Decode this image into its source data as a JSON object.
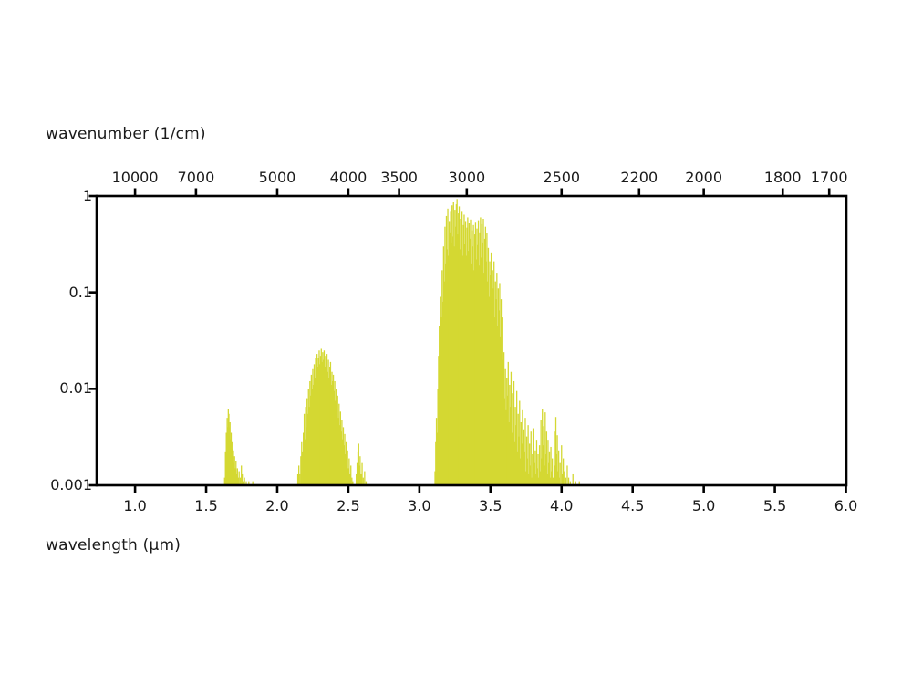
{
  "chart_data": {
    "type": "bar",
    "subtype": "stick-spectrum",
    "description": "Infrared absorption line spectrum with three dense bands near 1.7, 2.3 and 3.3 micrometers",
    "top_axis": {
      "label": "wavenumber (1/cm)",
      "tick_labels": [
        "10000",
        "7000",
        "5000",
        "4000",
        "3500",
        "3000",
        "2500",
        "2200",
        "2000",
        "1800",
        "1700"
      ]
    },
    "bottom_axis": {
      "label": "wavelength (μm)",
      "tick_labels": [
        "1.0",
        "1.5",
        "2.0",
        "2.5",
        "3.0",
        "3.5",
        "4.0",
        "4.5",
        "5.0",
        "5.5",
        "6.0"
      ],
      "range": [
        0.73,
        6.0
      ]
    },
    "y_axis": {
      "scale": "log",
      "tick_labels": [
        "1",
        "0.1",
        "0.01",
        "0.001"
      ],
      "range": [
        0.001,
        1
      ]
    },
    "grid": false,
    "legend": false,
    "series": [
      {
        "name": "absorption-spectrum",
        "color": "#d4d832",
        "points": [
          [
            1.63,
            0.0012
          ],
          [
            1.636,
            0.0022
          ],
          [
            1.642,
            0.0035
          ],
          [
            1.648,
            0.005
          ],
          [
            1.652,
            0.004
          ],
          [
            1.656,
            0.0062
          ],
          [
            1.66,
            0.0055
          ],
          [
            1.664,
            0.004
          ],
          [
            1.668,
            0.0045
          ],
          [
            1.672,
            0.003
          ],
          [
            1.676,
            0.0035
          ],
          [
            1.68,
            0.0024
          ],
          [
            1.684,
            0.0028
          ],
          [
            1.688,
            0.002
          ],
          [
            1.692,
            0.0023
          ],
          [
            1.696,
            0.0017
          ],
          [
            1.7,
            0.002
          ],
          [
            1.705,
            0.0015
          ],
          [
            1.71,
            0.0018
          ],
          [
            1.715,
            0.0013
          ],
          [
            1.72,
            0.0015
          ],
          [
            1.726,
            0.0012
          ],
          [
            1.732,
            0.0014
          ],
          [
            1.74,
            0.0012
          ],
          [
            1.748,
            0.0016
          ],
          [
            1.754,
            0.0013
          ],
          [
            1.76,
            0.0011
          ],
          [
            1.77,
            0.0012
          ],
          [
            1.782,
            0.0011
          ],
          [
            1.8,
            0.0011
          ],
          [
            1.828,
            0.0011
          ],
          [
            2.145,
            0.0013
          ],
          [
            2.152,
            0.0016
          ],
          [
            2.159,
            0.0013
          ],
          [
            2.166,
            0.002
          ],
          [
            2.172,
            0.0028
          ],
          [
            2.178,
            0.0022
          ],
          [
            2.184,
            0.0035
          ],
          [
            2.19,
            0.0055
          ],
          [
            2.195,
            0.003
          ],
          [
            2.2,
            0.0065
          ],
          [
            2.205,
            0.004
          ],
          [
            2.21,
            0.008
          ],
          [
            2.215,
            0.0055
          ],
          [
            2.22,
            0.01
          ],
          [
            2.225,
            0.0065
          ],
          [
            2.23,
            0.012
          ],
          [
            2.235,
            0.0085
          ],
          [
            2.24,
            0.014
          ],
          [
            2.245,
            0.01
          ],
          [
            2.25,
            0.016
          ],
          [
            2.255,
            0.011
          ],
          [
            2.26,
            0.018
          ],
          [
            2.265,
            0.013
          ],
          [
            2.27,
            0.021
          ],
          [
            2.275,
            0.015
          ],
          [
            2.28,
            0.023
          ],
          [
            2.285,
            0.017
          ],
          [
            2.29,
            0.021
          ],
          [
            2.295,
            0.025
          ],
          [
            2.3,
            0.018
          ],
          [
            2.305,
            0.022
          ],
          [
            2.31,
            0.026
          ],
          [
            2.315,
            0.019
          ],
          [
            2.32,
            0.024
          ],
          [
            2.325,
            0.02
          ],
          [
            2.33,
            0.025
          ],
          [
            2.335,
            0.017
          ],
          [
            2.34,
            0.022
          ],
          [
            2.345,
            0.018
          ],
          [
            2.35,
            0.023
          ],
          [
            2.355,
            0.015
          ],
          [
            2.36,
            0.02
          ],
          [
            2.365,
            0.013
          ],
          [
            2.37,
            0.017
          ],
          [
            2.375,
            0.019
          ],
          [
            2.38,
            0.011
          ],
          [
            2.385,
            0.015
          ],
          [
            2.39,
            0.012
          ],
          [
            2.395,
            0.014
          ],
          [
            2.4,
            0.0095
          ],
          [
            2.405,
            0.012
          ],
          [
            2.41,
            0.0075
          ],
          [
            2.415,
            0.01
          ],
          [
            2.42,
            0.006
          ],
          [
            2.425,
            0.0085
          ],
          [
            2.43,
            0.005
          ],
          [
            2.435,
            0.007
          ],
          [
            2.44,
            0.0042
          ],
          [
            2.445,
            0.0058
          ],
          [
            2.45,
            0.0036
          ],
          [
            2.455,
            0.0048
          ],
          [
            2.46,
            0.003
          ],
          [
            2.465,
            0.004
          ],
          [
            2.47,
            0.0026
          ],
          [
            2.475,
            0.0034
          ],
          [
            2.48,
            0.0021
          ],
          [
            2.485,
            0.0028
          ],
          [
            2.49,
            0.0017
          ],
          [
            2.495,
            0.0023
          ],
          [
            2.5,
            0.0015
          ],
          [
            2.506,
            0.0019
          ],
          [
            2.512,
            0.0013
          ],
          [
            2.518,
            0.0016
          ],
          [
            2.525,
            0.0012
          ],
          [
            2.532,
            0.0011
          ],
          [
            2.556,
            0.0013
          ],
          [
            2.562,
            0.0017
          ],
          [
            2.568,
            0.0022
          ],
          [
            2.573,
            0.0027
          ],
          [
            2.578,
            0.0016
          ],
          [
            2.583,
            0.002
          ],
          [
            2.59,
            0.0013
          ],
          [
            2.597,
            0.0017
          ],
          [
            2.605,
            0.0012
          ],
          [
            2.615,
            0.0014
          ],
          [
            2.625,
            0.0011
          ],
          [
            3.11,
            0.0014
          ],
          [
            3.115,
            0.0028
          ],
          [
            3.12,
            0.005
          ],
          [
            3.125,
            0.0035
          ],
          [
            3.13,
            0.01
          ],
          [
            3.135,
            0.022
          ],
          [
            3.14,
            0.045
          ],
          [
            3.145,
            0.028
          ],
          [
            3.15,
            0.09
          ],
          [
            3.155,
            0.055
          ],
          [
            3.16,
            0.17
          ],
          [
            3.165,
            0.08
          ],
          [
            3.17,
            0.3
          ],
          [
            3.175,
            0.13
          ],
          [
            3.18,
            0.48
          ],
          [
            3.185,
            0.2
          ],
          [
            3.19,
            0.62
          ],
          [
            3.195,
            0.28
          ],
          [
            3.2,
            0.74
          ],
          [
            3.205,
            0.24
          ],
          [
            3.21,
            0.55
          ],
          [
            3.215,
            0.42
          ],
          [
            3.22,
            0.7
          ],
          [
            3.225,
            0.33
          ],
          [
            3.23,
            0.8
          ],
          [
            3.235,
            0.38
          ],
          [
            3.24,
            0.86
          ],
          [
            3.245,
            0.3
          ],
          [
            3.25,
            0.72
          ],
          [
            3.255,
            0.48
          ],
          [
            3.26,
            0.82
          ],
          [
            3.265,
            0.93
          ],
          [
            3.27,
            0.4
          ],
          [
            3.275,
            0.66
          ],
          [
            3.28,
            0.78
          ],
          [
            3.285,
            0.28
          ],
          [
            3.29,
            0.58
          ],
          [
            3.295,
            0.42
          ],
          [
            3.3,
            0.7
          ],
          [
            3.305,
            0.24
          ],
          [
            3.31,
            0.5
          ],
          [
            3.315,
            0.64
          ],
          [
            3.32,
            0.32
          ],
          [
            3.325,
            0.55
          ],
          [
            3.33,
            0.24
          ],
          [
            3.335,
            0.47
          ],
          [
            3.34,
            0.6
          ],
          [
            3.345,
            0.27
          ],
          [
            3.35,
            0.52
          ],
          [
            3.355,
            0.36
          ],
          [
            3.36,
            0.57
          ],
          [
            3.365,
            0.2
          ],
          [
            3.37,
            0.44
          ],
          [
            3.375,
            0.3
          ],
          [
            3.38,
            0.5
          ],
          [
            3.385,
            0.17
          ],
          [
            3.39,
            0.4
          ],
          [
            3.395,
            0.54
          ],
          [
            3.4,
            0.22
          ],
          [
            3.405,
            0.46
          ],
          [
            3.41,
            0.31
          ],
          [
            3.415,
            0.56
          ],
          [
            3.42,
            0.19
          ],
          [
            3.425,
            0.42
          ],
          [
            3.43,
            0.6
          ],
          [
            3.435,
            0.23
          ],
          [
            3.44,
            0.51
          ],
          [
            3.445,
            0.33
          ],
          [
            3.45,
            0.58
          ],
          [
            3.455,
            0.16
          ],
          [
            3.46,
            0.36
          ],
          [
            3.465,
            0.48
          ],
          [
            3.47,
            0.21
          ],
          [
            3.475,
            0.41
          ],
          [
            3.48,
            0.13
          ],
          [
            3.485,
            0.29
          ],
          [
            3.49,
            0.09
          ],
          [
            3.495,
            0.21
          ],
          [
            3.5,
            0.15
          ],
          [
            3.505,
            0.26
          ],
          [
            3.51,
            0.07
          ],
          [
            3.515,
            0.17
          ],
          [
            3.52,
            0.11
          ],
          [
            3.525,
            0.21
          ],
          [
            3.53,
            0.055
          ],
          [
            3.535,
            0.13
          ],
          [
            3.54,
            0.085
          ],
          [
            3.545,
            0.16
          ],
          [
            3.55,
            0.045
          ],
          [
            3.555,
            0.11
          ],
          [
            3.56,
            0.065
          ],
          [
            3.565,
            0.125
          ],
          [
            3.57,
            0.035
          ],
          [
            3.575,
            0.085
          ],
          [
            3.58,
            0.055
          ],
          [
            3.585,
            0.02
          ],
          [
            3.59,
            0.011
          ],
          [
            3.595,
            0.024
          ],
          [
            3.6,
            0.008
          ],
          [
            3.605,
            0.016
          ],
          [
            3.61,
            0.006
          ],
          [
            3.615,
            0.013
          ],
          [
            3.62,
            0.0085
          ],
          [
            3.625,
            0.019
          ],
          [
            3.63,
            0.0045
          ],
          [
            3.635,
            0.011
          ],
          [
            3.64,
            0.0065
          ],
          [
            3.645,
            0.015
          ],
          [
            3.65,
            0.0035
          ],
          [
            3.655,
            0.009
          ],
          [
            3.66,
            0.0055
          ],
          [
            3.665,
            0.012
          ],
          [
            3.67,
            0.0028
          ],
          [
            3.675,
            0.0065
          ],
          [
            3.68,
            0.0042
          ],
          [
            3.685,
            0.0095
          ],
          [
            3.69,
            0.0022
          ],
          [
            3.695,
            0.0055
          ],
          [
            3.7,
            0.0032
          ],
          [
            3.705,
            0.0075
          ],
          [
            3.71,
            0.0019
          ],
          [
            3.715,
            0.0045
          ],
          [
            3.72,
            0.0027
          ],
          [
            3.725,
            0.006
          ],
          [
            3.73,
            0.0016
          ],
          [
            3.735,
            0.0038
          ],
          [
            3.74,
            0.0022
          ],
          [
            3.745,
            0.005
          ],
          [
            3.75,
            0.0014
          ],
          [
            3.755,
            0.0032
          ],
          [
            3.76,
            0.0019
          ],
          [
            3.765,
            0.0042
          ],
          [
            3.77,
            0.0013
          ],
          [
            3.775,
            0.0027
          ],
          [
            3.78,
            0.0016
          ],
          [
            3.785,
            0.0036
          ],
          [
            3.79,
            0.0012
          ],
          [
            3.795,
            0.0021
          ],
          [
            3.8,
            0.0039
          ],
          [
            3.805,
            0.0031
          ],
          [
            3.81,
            0.0017
          ],
          [
            3.815,
            0.0023
          ],
          [
            3.82,
            0.0013
          ],
          [
            3.825,
            0.0029
          ],
          [
            3.83,
            0.0015
          ],
          [
            3.835,
            0.0021
          ],
          [
            3.84,
            0.0012
          ],
          [
            3.845,
            0.0026
          ],
          [
            3.85,
            0.0014
          ],
          [
            3.855,
            0.0047
          ],
          [
            3.86,
            0.0019
          ],
          [
            3.865,
            0.0062
          ],
          [
            3.87,
            0.0026
          ],
          [
            3.875,
            0.0041
          ],
          [
            3.88,
            0.0016
          ],
          [
            3.885,
            0.0057
          ],
          [
            3.89,
            0.0021
          ],
          [
            3.895,
            0.0036
          ],
          [
            3.9,
            0.0013
          ],
          [
            3.905,
            0.0029
          ],
          [
            3.91,
            0.0017
          ],
          [
            3.915,
            0.0022
          ],
          [
            3.92,
            0.0012
          ],
          [
            3.925,
            0.0025
          ],
          [
            3.93,
            0.0014
          ],
          [
            3.935,
            0.0019
          ],
          [
            3.94,
            0.0012
          ],
          [
            3.95,
            0.0036
          ],
          [
            3.955,
            0.0016
          ],
          [
            3.96,
            0.0051
          ],
          [
            3.965,
            0.0021
          ],
          [
            3.97,
            0.0033
          ],
          [
            3.975,
            0.0014
          ],
          [
            3.98,
            0.0023
          ],
          [
            3.985,
            0.0012
          ],
          [
            3.99,
            0.0017
          ],
          [
            4.0,
            0.0026
          ],
          [
            4.006,
            0.0013
          ],
          [
            4.012,
            0.0019
          ],
          [
            4.02,
            0.0014
          ],
          [
            4.03,
            0.0012
          ],
          [
            4.04,
            0.0016
          ],
          [
            4.05,
            0.0012
          ],
          [
            4.062,
            0.0011
          ],
          [
            4.08,
            0.0013
          ],
          [
            4.1,
            0.0011
          ],
          [
            4.125,
            0.0011
          ]
        ]
      }
    ]
  },
  "colors": {
    "background": "#ffffff",
    "axis": "#000000",
    "text": "#1a1a1a",
    "spectrum": "#d4d832"
  }
}
